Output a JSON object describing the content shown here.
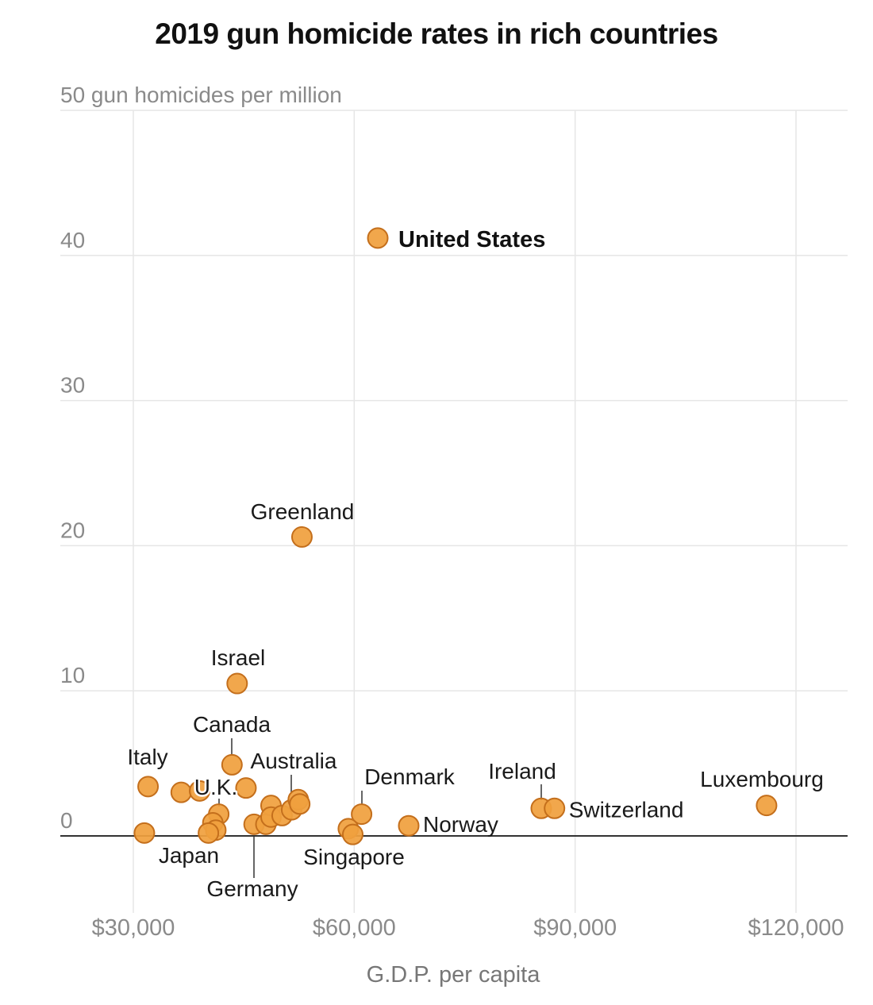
{
  "chart_data": {
    "type": "scatter",
    "title": "2019 gun homicide rates in rich countries",
    "ylabel": "gun homicides per million",
    "xlabel": "G.D.P. per capita",
    "ylim": [
      0,
      50
    ],
    "xlim": [
      20000,
      130000
    ],
    "yticks": [
      0,
      10,
      20,
      30,
      40,
      50
    ],
    "ytick_labels": [
      "0",
      "10",
      "20",
      "30",
      "40",
      "50 gun homicides per million"
    ],
    "xticks": [
      30000,
      60000,
      90000,
      120000
    ],
    "xtick_labels": [
      "$30,000",
      "$60,000",
      "$90,000",
      "$120,000"
    ],
    "grid": true,
    "marker_color": "#F0A03E",
    "marker_stroke": "#C46F1C",
    "points": [
      {
        "label": "United States",
        "x": 63200,
        "y": 41.2,
        "highlight": true
      },
      {
        "label": "Greenland",
        "x": 52900,
        "y": 20.6
      },
      {
        "label": "Israel",
        "x": 44100,
        "y": 10.5
      },
      {
        "label": "Canada",
        "x": 43400,
        "y": 4.9
      },
      {
        "label": "",
        "x": 45300,
        "y": 3.3
      },
      {
        "label": "Italy",
        "x": 32000,
        "y": 3.4
      },
      {
        "label": "",
        "x": 36500,
        "y": 3.0
      },
      {
        "label": "",
        "x": 39000,
        "y": 3.1
      },
      {
        "label": "U.K.",
        "x": 41600,
        "y": 1.5
      },
      {
        "label": "",
        "x": 40800,
        "y": 0.9
      },
      {
        "label": "",
        "x": 41200,
        "y": 0.4
      },
      {
        "label": "Japan",
        "x": 40200,
        "y": 0.2
      },
      {
        "label": "",
        "x": 31500,
        "y": 0.2
      },
      {
        "label": "Germany",
        "x": 46400,
        "y": 0.8
      },
      {
        "label": "",
        "x": 48000,
        "y": 0.8
      },
      {
        "label": "",
        "x": 48700,
        "y": 2.1
      },
      {
        "label": "",
        "x": 48700,
        "y": 1.3
      },
      {
        "label": "",
        "x": 50200,
        "y": 1.4
      },
      {
        "label": "",
        "x": 51500,
        "y": 1.8
      },
      {
        "label": "",
        "x": 52400,
        "y": 2.5
      },
      {
        "label": "Australia",
        "x": 52600,
        "y": 2.2
      },
      {
        "label": "Denmark",
        "x": 61000,
        "y": 1.5
      },
      {
        "label": "",
        "x": 59200,
        "y": 0.5
      },
      {
        "label": "Singapore",
        "x": 59800,
        "y": 0.1
      },
      {
        "label": "Norway",
        "x": 67400,
        "y": 0.7
      },
      {
        "label": "Ireland",
        "x": 85400,
        "y": 1.9
      },
      {
        "label": "Switzerland",
        "x": 87200,
        "y": 1.9
      },
      {
        "label": "Luxembourg",
        "x": 116000,
        "y": 2.1
      }
    ]
  }
}
